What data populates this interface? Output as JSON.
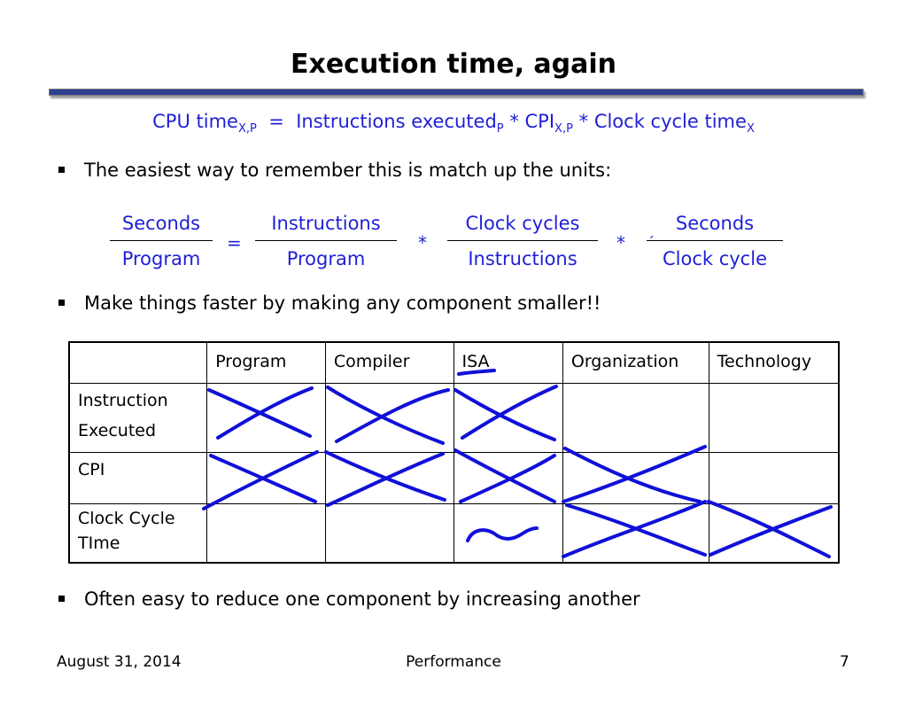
{
  "slide": {
    "title": "Execution time, again",
    "formula": {
      "lhs": "CPU time",
      "lhs_sub": "X,P",
      "eq": "=",
      "term1": "Instructions executed",
      "term1_sub": "P",
      "star1": "*",
      "term2": "CPI",
      "term2_sub": "X,P",
      "star2": "*",
      "term3": "Clock cycle time",
      "term3_sub": "X"
    },
    "bullets": [
      "The easiest way to remember this is match up the units:",
      "Make things faster by making any component smaller!!",
      "Often easy to reduce one component by increasing another"
    ],
    "units": {
      "f1_num": "Seconds",
      "f1_den": "Program",
      "eq": "=",
      "f2_num": "Instructions",
      "f2_den": "Program",
      "star1": "*",
      "f3_num": "Clock cycles",
      "f3_den": "Instructions",
      "star2": "*",
      "f4_tick": "ˏ",
      "f4_num": "Seconds",
      "f4_den": "Clock cycle"
    },
    "table": {
      "headers": [
        "",
        "Program",
        "Compiler",
        "ISA",
        "Organization",
        "Technology"
      ],
      "rows": [
        {
          "label_line1": "Instruction",
          "label_line2": "Executed"
        },
        {
          "label_line1": "CPI",
          "label_line2": ""
        },
        {
          "label_line1": "Clock Cycle",
          "label_line2": "TIme"
        }
      ]
    },
    "footer": {
      "date": "August 31, 2014",
      "topic": "Performance",
      "page": "7"
    },
    "colors": {
      "accent_text": "#1f1fd6",
      "ink": "#1010d8",
      "title_rule": "#2f3f8f"
    }
  }
}
